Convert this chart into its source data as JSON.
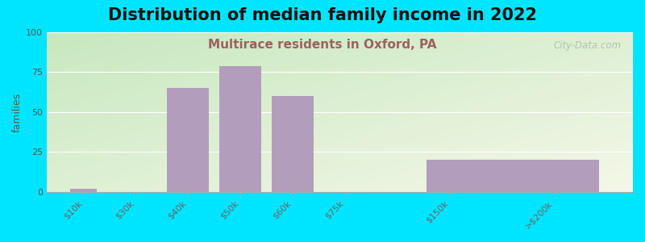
{
  "title": "Distribution of median family income in 2022",
  "subtitle": "Multirace residents in Oxford, PA",
  "ylabel": "families",
  "categories": [
    "$10k",
    "$30k",
    "$40k",
    "$50k",
    "$60k",
    "$75k",
    "$150k",
    ">$200k"
  ],
  "tick_positions": [
    0,
    1,
    2,
    3,
    4,
    5,
    7,
    9
  ],
  "bar_positions": [
    0,
    2,
    3,
    4,
    5,
    8.2
  ],
  "bar_values": [
    2,
    65,
    79,
    60,
    0,
    20
  ],
  "bar_widths": [
    0.5,
    0.8,
    0.8,
    0.8,
    0.01,
    3.3
  ],
  "bar_color": "#b39dbd",
  "background_outer": "#00e5ff",
  "gradient_top_left": "#c8e6c0",
  "gradient_bottom_right": "#f5f5e8",
  "ylim": [
    0,
    100
  ],
  "yticks": [
    0,
    25,
    50,
    75,
    100
  ],
  "xlim": [
    -0.7,
    10.5
  ],
  "title_fontsize": 15,
  "subtitle_fontsize": 11,
  "subtitle_color": "#9e6060",
  "watermark": "City-Data.com",
  "watermark_color": "#b0b8b0"
}
